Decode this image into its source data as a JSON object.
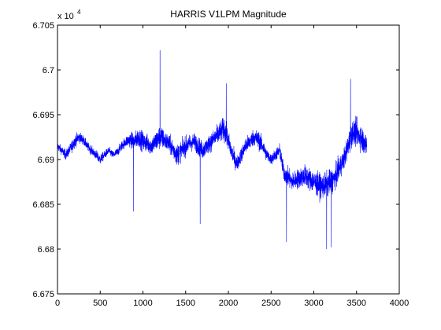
{
  "chart_data": {
    "type": "line",
    "title": "HARRIS V1LPM Magnitude",
    "xlabel": "",
    "ylabel": "",
    "y_exponent_label": "x 10",
    "y_exponent": "4",
    "xlim": [
      0,
      4000
    ],
    "ylim": [
      6.675,
      6.705
    ],
    "x_ticks": [
      0,
      500,
      1000,
      1500,
      2000,
      2500,
      3000,
      3500,
      4000
    ],
    "y_ticks": [
      6.675,
      6.68,
      6.685,
      6.69,
      6.695,
      6.7,
      6.705
    ],
    "x_tick_labels": [
      "0",
      "500",
      "1000",
      "1500",
      "2000",
      "2500",
      "3000",
      "3500",
      "4000"
    ],
    "y_tick_labels": [
      "6.675",
      "6.68",
      "6.685",
      "6.69",
      "6.695",
      "6.7",
      "6.705"
    ],
    "grid": false,
    "series": [
      {
        "color": "#0000ff",
        "x_range": [
          1,
          3620
        ],
        "envelope_x": [
          0,
          50,
          100,
          150,
          200,
          250,
          300,
          350,
          400,
          450,
          500,
          550,
          600,
          650,
          700,
          750,
          800,
          850,
          900,
          950,
          1000,
          1050,
          1100,
          1150,
          1200,
          1250,
          1300,
          1350,
          1400,
          1450,
          1500,
          1550,
          1600,
          1650,
          1700,
          1750,
          1800,
          1850,
          1900,
          1950,
          2000,
          2050,
          2100,
          2150,
          2200,
          2250,
          2300,
          2350,
          2400,
          2450,
          2500,
          2550,
          2600,
          2650,
          2700,
          2750,
          2800,
          2850,
          2900,
          2950,
          3000,
          3050,
          3100,
          3150,
          3200,
          3250,
          3300,
          3350,
          3400,
          3450,
          3500,
          3550,
          3620
        ],
        "envelope_mid": [
          6.6915,
          6.691,
          6.6905,
          6.6912,
          6.692,
          6.6925,
          6.6922,
          6.6915,
          6.691,
          6.6905,
          6.69,
          6.6905,
          6.691,
          6.6905,
          6.6908,
          6.6915,
          6.692,
          6.6922,
          6.692,
          6.6925,
          6.692,
          6.6918,
          6.6915,
          6.692,
          6.6925,
          6.6922,
          6.6918,
          6.6912,
          6.6905,
          6.691,
          6.6915,
          6.6918,
          6.692,
          6.6915,
          6.691,
          6.6915,
          6.692,
          6.6925,
          6.693,
          6.6935,
          6.692,
          6.6905,
          6.6895,
          6.6905,
          6.6915,
          6.692,
          6.6925,
          6.6922,
          6.6915,
          6.6905,
          6.69,
          6.6905,
          6.691,
          6.6885,
          6.688,
          6.6875,
          6.6878,
          6.688,
          6.6882,
          6.6878,
          6.6875,
          6.6872,
          6.687,
          6.6872,
          6.6875,
          6.688,
          6.689,
          6.69,
          6.6915,
          6.693,
          6.693,
          6.6925,
          6.6915
        ],
        "envelope_halfwidth": [
          0.0008,
          0.0008,
          0.0009,
          0.001,
          0.0012,
          0.001,
          0.0009,
          0.0008,
          0.0008,
          0.0009,
          0.0009,
          0.0008,
          0.0007,
          0.0007,
          0.0008,
          0.0009,
          0.001,
          0.0014,
          0.0016,
          0.0018,
          0.0018,
          0.0017,
          0.0016,
          0.002,
          0.0022,
          0.0018,
          0.0017,
          0.0018,
          0.002,
          0.0018,
          0.0018,
          0.0016,
          0.0016,
          0.0017,
          0.0016,
          0.0016,
          0.0017,
          0.0018,
          0.002,
          0.0022,
          0.0019,
          0.0016,
          0.0014,
          0.0014,
          0.0015,
          0.0015,
          0.0016,
          0.0017,
          0.0015,
          0.0012,
          0.001,
          0.0011,
          0.0013,
          0.0016,
          0.0018,
          0.0017,
          0.0018,
          0.0019,
          0.002,
          0.0021,
          0.0022,
          0.0022,
          0.0022,
          0.0023,
          0.0024,
          0.0022,
          0.0021,
          0.002,
          0.0022,
          0.0024,
          0.0024,
          0.0024,
          0.0022
        ],
        "spikes": [
          {
            "x": 890,
            "y": 6.6842
          },
          {
            "x": 1200,
            "y": 6.7022
          },
          {
            "x": 1670,
            "y": 6.6828
          },
          {
            "x": 1975,
            "y": 6.6985
          },
          {
            "x": 2680,
            "y": 6.6808
          },
          {
            "x": 3150,
            "y": 6.68
          },
          {
            "x": 3205,
            "y": 6.6802
          },
          {
            "x": 3430,
            "y": 6.699
          }
        ]
      }
    ]
  }
}
